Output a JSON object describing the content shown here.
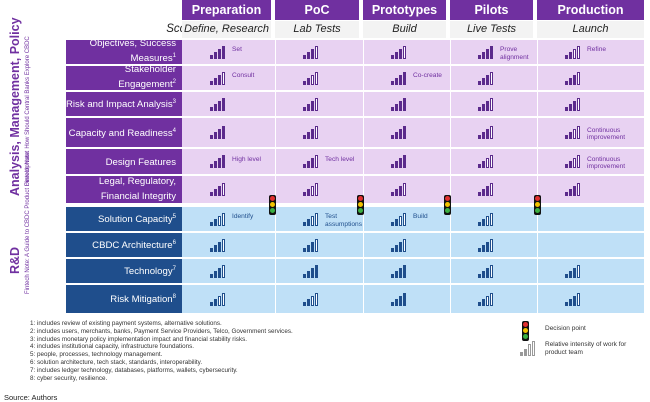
{
  "columns": [
    "Preparation",
    "PoC",
    "Prototypes",
    "Pilots",
    "Production"
  ],
  "scope_label": "Scope:",
  "scopes": [
    "Define, Research",
    "Lab Tests",
    "Build",
    "Live Tests",
    "Launch"
  ],
  "side_top": {
    "title": "Analysis, Management, Policy",
    "sub": "Fintech Note: How Should Central Banks Explore CBDC"
  },
  "side_bottom": {
    "title": "R&D",
    "sub": "Fintech Note: A Guide to CBDC Product Development"
  },
  "rows_top": [
    {
      "label": "Objectives, Success Measures",
      "sup": "1",
      "levels": [
        3,
        2,
        2,
        3,
        1
      ]
    },
    {
      "label": "Stakeholder Engagement",
      "sup": "2",
      "levels": [
        2,
        1,
        3,
        2,
        2
      ]
    },
    {
      "label": "Risk and Impact Analysis",
      "sup": "3",
      "levels": [
        3,
        2,
        3,
        2,
        2
      ]
    },
    {
      "label": "Capacity and Readiness",
      "sup": "4",
      "levels": [
        3,
        2,
        3,
        2,
        1
      ]
    },
    {
      "label": "Design Features",
      "sup": "",
      "levels": [
        3,
        2,
        3,
        1,
        1
      ]
    },
    {
      "label": "Legal, Regulatory, Financial Integrity",
      "sup": "",
      "levels": [
        2,
        1,
        2,
        2,
        2
      ]
    }
  ],
  "rows_bottom": [
    {
      "label": "Solution Capacity",
      "sup": "5",
      "levels": [
        1,
        1,
        1,
        1,
        0
      ]
    },
    {
      "label": "CBDC Architecture",
      "sup": "6",
      "levels": [
        2,
        2,
        2,
        2,
        0
      ]
    },
    {
      "label": "Technology",
      "sup": "7",
      "levels": [
        2,
        3,
        3,
        2,
        2
      ]
    },
    {
      "label": "Risk Mitigation",
      "sup": "8",
      "levels": [
        1,
        1,
        3,
        1,
        2
      ]
    }
  ],
  "notes": [
    {
      "row": 0,
      "col": 0,
      "text": "Set"
    },
    {
      "row": 0,
      "col": 3,
      "text": "Prove alignment"
    },
    {
      "row": 0,
      "col": 4,
      "text": "Refine"
    },
    {
      "row": 1,
      "col": 0,
      "text": "Consult"
    },
    {
      "row": 1,
      "col": 2,
      "text": "Co-create"
    },
    {
      "row": 3,
      "col": 4,
      "text": "Continuous improvement"
    },
    {
      "row": 4,
      "col": 0,
      "text": "High level"
    },
    {
      "row": 4,
      "col": 1,
      "text": "Tech level"
    },
    {
      "row": 4,
      "col": 4,
      "text": "Continuous improvement"
    },
    {
      "row": 6,
      "col": 0,
      "text": "Identify"
    },
    {
      "row": 6,
      "col": 1,
      "text": "Test assumptions"
    },
    {
      "row": 6,
      "col": 2,
      "text": "Build"
    }
  ],
  "footnotes": [
    "1: includes review of existing payment systems, alternative solutions.",
    "2: includes users, merchants, banks, Payment Service Providers, Telco, Government services.",
    "3: includes monetary policy implementation impact and financial stability risks.",
    "4: includes institutional capacity, infrastructure foundations.",
    "5: people, processes, technology management.",
    "6: solution architecture, tech stack, standards, interoperability.",
    "7: includes ledger technology, databases, platforms, wallets, cybersecurity.",
    "8: cyber security, resilience."
  ],
  "legend": {
    "decision": "Decision point",
    "intensity": "Relative intensity of work for product team"
  },
  "source": "Source: Authors",
  "colors": {
    "purple_dark": "#7030a0",
    "purple_row": "#e8d2f2",
    "blue_dark": "#1f4e8c",
    "blue_row": "#bfe0f7",
    "bar": "#5b2a8c",
    "bar_blue": "#1f4e8c"
  }
}
